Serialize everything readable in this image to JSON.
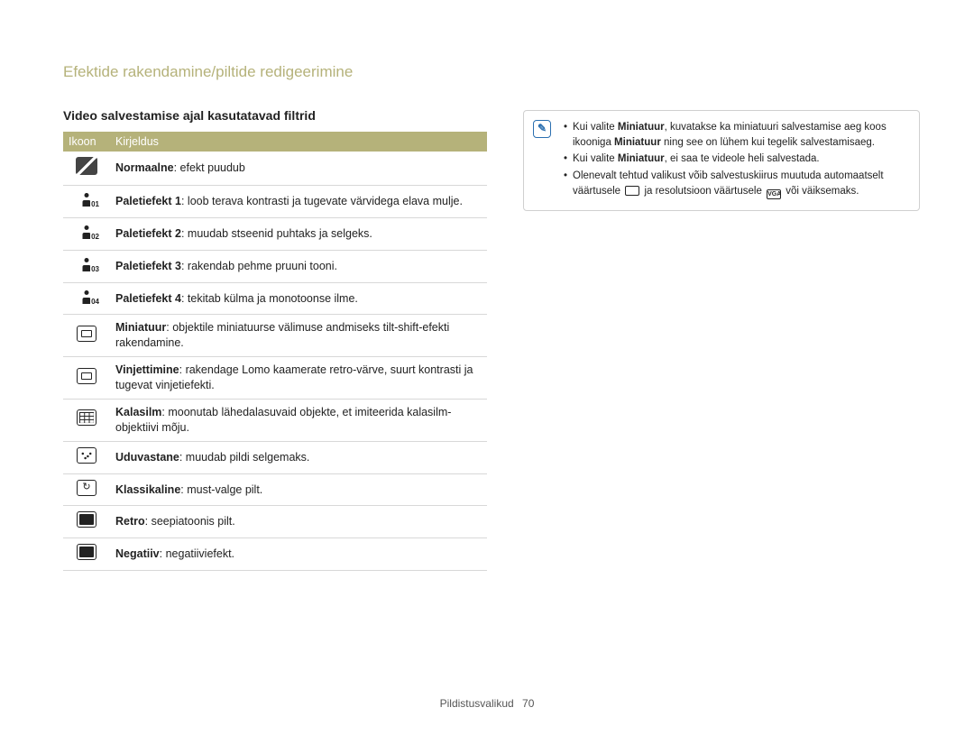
{
  "page_title": "Efektide rakendamine/piltide redigeerimine",
  "section_heading": "Video salvestamise ajal kasutatavad filtrid",
  "table": {
    "headers": {
      "icon": "Ikoon",
      "desc": "Kirjeldus"
    },
    "rows": [
      {
        "icon": "off",
        "name": "Normaalne",
        "desc": ": efekt puudub"
      },
      {
        "icon": "p01",
        "name": "Paletiefekt 1",
        "desc": ": loob terava kontrasti ja tugevate värvidega elava mulje."
      },
      {
        "icon": "p02",
        "name": "Paletiefekt 2",
        "desc": ": muudab stseenid puhtaks ja selgeks."
      },
      {
        "icon": "p03",
        "name": "Paletiefekt 3",
        "desc": ": rakendab pehme pruuni tooni."
      },
      {
        "icon": "p04",
        "name": "Paletiefekt 4",
        "desc": ": tekitab külma ja monotoonse ilme."
      },
      {
        "icon": "mini",
        "name": "Miniatuur",
        "desc": ": objektile miniatuurse välimuse andmiseks tilt-shift-efekti rakendamine."
      },
      {
        "icon": "vinj",
        "name": "Vinjettimine",
        "desc": ": rakendage Lomo kaamerate retro-värve, suurt kontrasti ja tugevat vinjetiefekti."
      },
      {
        "icon": "kala",
        "name": "Kalasilm",
        "desc": ": moonutab lähedalasuvaid objekte, et imiteerida kalasilm-objektiivi mõju."
      },
      {
        "icon": "udu",
        "name": "Uduvastane",
        "desc": ": muudab pildi selgemaks."
      },
      {
        "icon": "klass",
        "name": "Klassikaline",
        "desc": ": must-valge pilt."
      },
      {
        "icon": "retro",
        "name": "Retro",
        "desc": ": seepiatoonis pilt."
      },
      {
        "icon": "neg",
        "name": "Negatiiv",
        "desc": ": negatiiviefekt."
      }
    ]
  },
  "note": {
    "items": [
      {
        "pre": "Kui valite ",
        "bold1": "Miniatuur",
        "mid": ", kuvatakse ka miniatuuri salvestamise aeg koos ikooniga ",
        "bold2": "Miniatuur",
        "post": " ning see on lühem kui tegelik salvestamisaeg."
      },
      {
        "pre": "Kui valite ",
        "bold1": "Miniatuur",
        "post": ", ei saa te videole heli salvestada."
      },
      {
        "pre": "Olenevalt tehtud valikust võib salvestuskiirus muutuda automaatselt väärtusele ",
        "icon1": "⧉",
        "mid": " ja resolutsioon väärtusele ",
        "icon2": "VGA",
        "post": " või väiksemaks."
      }
    ]
  },
  "footer": {
    "label": "Pildistusvalikud",
    "page": "70"
  },
  "colors": {
    "accent": "#b5b27a",
    "border": "#d8d8d8",
    "note_icon": "#2b6fb0",
    "text": "#222222",
    "bg": "#ffffff"
  }
}
